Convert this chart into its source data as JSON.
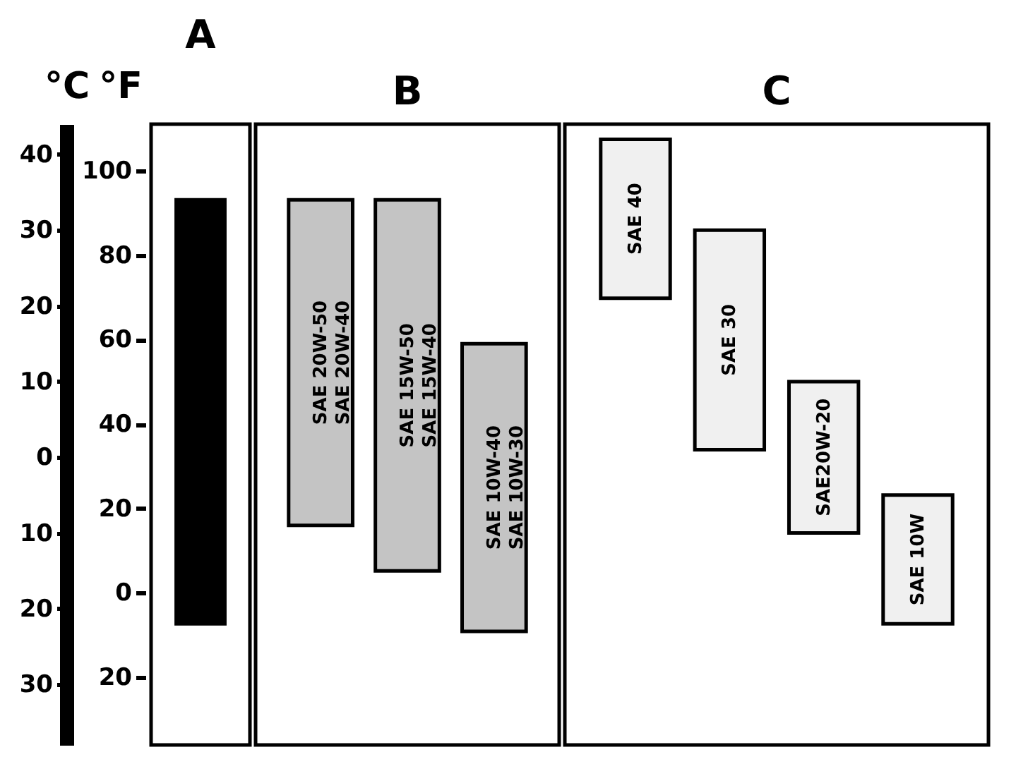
{
  "chart_data": [
    {
      "type": "bar",
      "title": "A",
      "ylabel": "°C",
      "y2label": "°F",
      "categories": [
        null
      ],
      "base": [
        -22
      ],
      "values": [
        56
      ],
      "colors": [
        "#000000"
      ],
      "ylim": [
        -38,
        44
      ],
      "yticks": [
        {
          "value": -30,
          "label": "30"
        },
        {
          "value": -20,
          "label": "20"
        },
        {
          "value": -10,
          "label": "10"
        },
        0,
        10,
        20,
        30,
        40
      ],
      "y2lim": [
        -36,
        111
      ],
      "y2ticks": [
        {
          "value": -20,
          "label": "20"
        },
        0,
        20,
        40,
        60,
        80,
        100
      ],
      "tick_labels": "y"
    },
    {
      "type": "bar",
      "title": "B",
      "categories": [
        "SAE 20W-50\nSAE 20W-40",
        "SAE 15W-50\nSAE 15W-40",
        "SAE 10W-40\nSAE 10W-30"
      ],
      "base": [
        -9,
        -15,
        -23
      ],
      "values": [
        43,
        49,
        38
      ],
      "colors": [
        "#c4c4c4",
        "#c4c4c4",
        "#c4c4c4"
      ],
      "ylim": [
        -38,
        44
      ],
      "tick_labels": false
    },
    {
      "type": "bar",
      "title": "C",
      "categories": [
        "SAE 40",
        "SAE 30",
        "SAE20W-20",
        "SAE 10W"
      ],
      "base": [
        21,
        1,
        -10,
        -22
      ],
      "values": [
        21,
        29,
        20,
        17
      ],
      "colors": [
        "#f0f0f0",
        "#f0f0f0",
        "#f0f0f0",
        "#f0f0f0"
      ],
      "ylim": [
        -38,
        44
      ],
      "tick_labels": false
    }
  ]
}
